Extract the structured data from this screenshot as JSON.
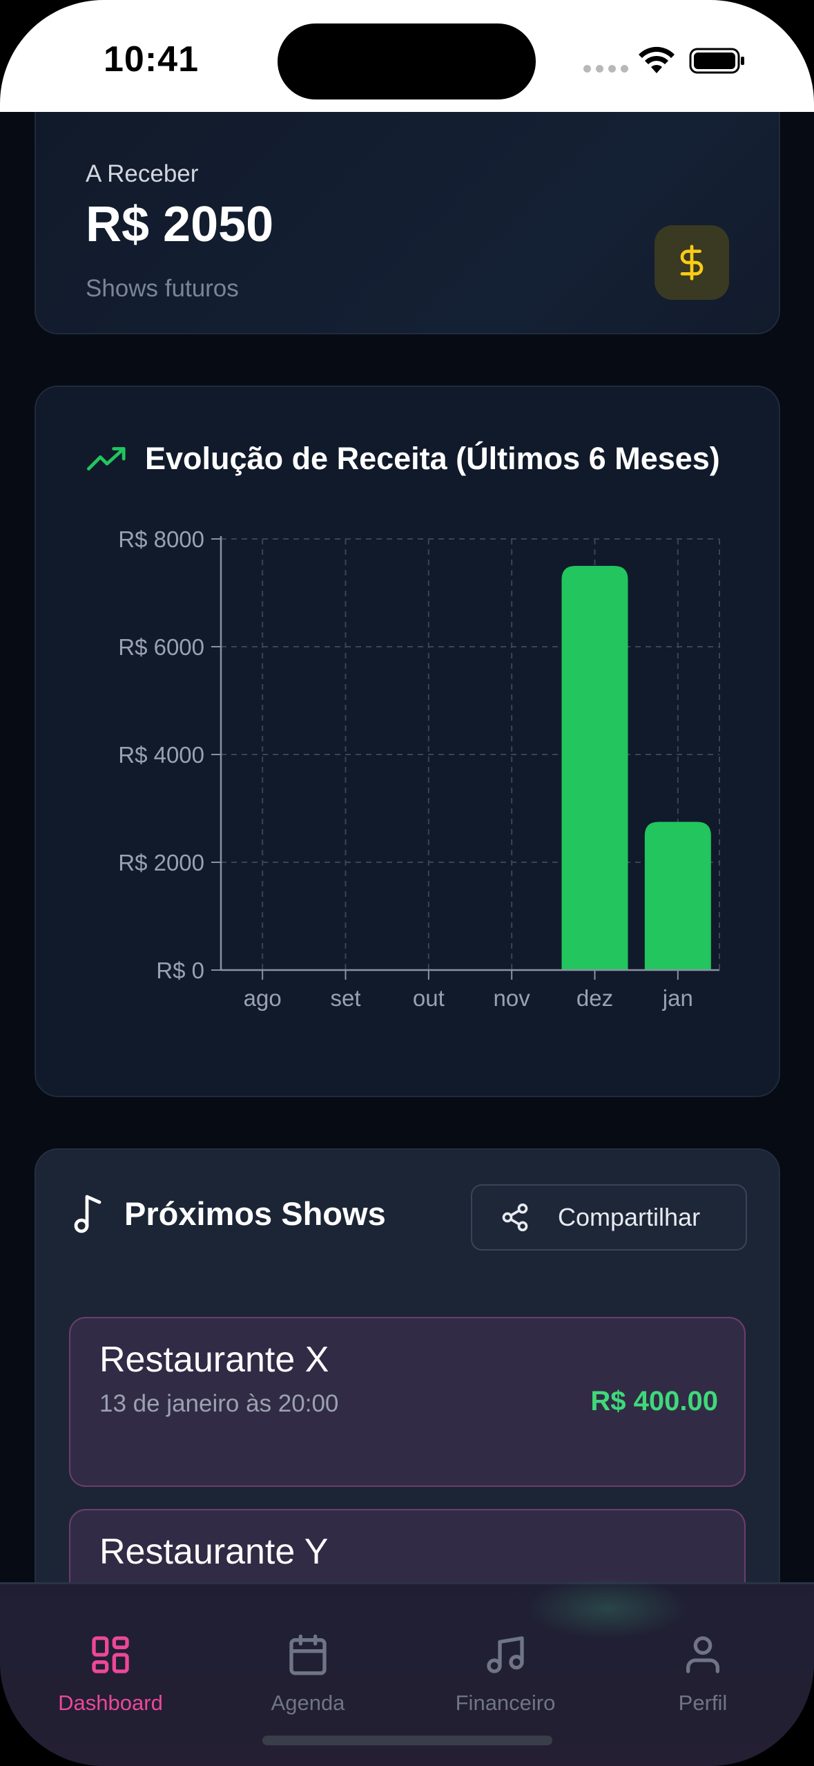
{
  "status_bar": {
    "time": "10:41"
  },
  "receive_card": {
    "label": "A Receber",
    "value": "R$ 2050",
    "subtitle": "Shows futuros",
    "icon": "dollar-icon",
    "accent": "#facc15"
  },
  "chart_card": {
    "title": "Evolução de Receita (Últimos 6 Meses)",
    "icon": "trending-up-icon"
  },
  "chart_data": {
    "type": "bar",
    "title": "Evolução de Receita (Últimos 6 Meses)",
    "categories": [
      "ago",
      "set",
      "out",
      "nov",
      "dez",
      "jan"
    ],
    "values": [
      0,
      0,
      0,
      0,
      7500,
      2750
    ],
    "ylim": [
      0,
      8000
    ],
    "yticks": [
      0,
      2000,
      4000,
      6000,
      8000
    ],
    "ytick_labels": [
      "R$ 0",
      "R$ 2000",
      "R$ 4000",
      "R$ 6000",
      "R$ 8000"
    ],
    "grid": true,
    "bar_color": "#22c55e"
  },
  "shows_card": {
    "title": "Próximos Shows",
    "icon": "music-note-icon",
    "share_label": "Compartilhar",
    "items": [
      {
        "name": "Restaurante X",
        "date": "13 de janeiro às 20:00",
        "price": "R$ 400.00"
      },
      {
        "name": "Restaurante Y"
      }
    ]
  },
  "bottom_nav": {
    "active_color": "#ec4899",
    "items": [
      {
        "label": "Dashboard",
        "icon": "dashboard-icon",
        "active": true
      },
      {
        "label": "Agenda",
        "icon": "calendar-icon",
        "active": false
      },
      {
        "label": "Financeiro",
        "icon": "music-notes-icon",
        "active": false
      },
      {
        "label": "Perfil",
        "icon": "user-icon",
        "active": false
      }
    ]
  }
}
